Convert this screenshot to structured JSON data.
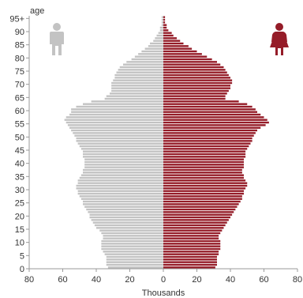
{
  "chart_data": {
    "type": "bar",
    "orientation": "horizontal",
    "layout": "population-pyramid",
    "title": "",
    "ylabel": "age",
    "xlabel": "Thousands",
    "x_ticks": [
      "80",
      "60",
      "40",
      "20",
      "0",
      "20",
      "40",
      "60",
      "80"
    ],
    "xlim": [
      -80,
      80
    ],
    "y_ticks": [
      "0",
      "5",
      "10",
      "15",
      "20",
      "25",
      "30",
      "35",
      "40",
      "45",
      "50",
      "55",
      "60",
      "65",
      "70",
      "75",
      "80",
      "85",
      "90",
      "95+"
    ],
    "ylim": [
      0,
      96
    ],
    "grid": false,
    "colors": {
      "male": "#c3c3c3",
      "female": "#951c28",
      "axis": "#9a9a9a",
      "text": "#333333"
    },
    "icons": {
      "male": "male-person-icon",
      "female": "female-person-icon"
    },
    "ages": [
      0,
      1,
      2,
      3,
      4,
      5,
      6,
      7,
      8,
      9,
      10,
      11,
      12,
      13,
      14,
      15,
      16,
      17,
      18,
      19,
      20,
      21,
      22,
      23,
      24,
      25,
      26,
      27,
      28,
      29,
      30,
      31,
      32,
      33,
      34,
      35,
      36,
      37,
      38,
      39,
      40,
      41,
      42,
      43,
      44,
      45,
      46,
      47,
      48,
      49,
      50,
      51,
      52,
      53,
      54,
      55,
      56,
      57,
      58,
      59,
      60,
      61,
      62,
      63,
      64,
      65,
      66,
      67,
      68,
      69,
      70,
      71,
      72,
      73,
      74,
      75,
      76,
      77,
      78,
      79,
      80,
      81,
      82,
      83,
      84,
      85,
      86,
      87,
      88,
      89,
      90,
      91,
      92,
      93,
      94,
      95
    ],
    "series": [
      {
        "group": "male",
        "values": [
          33,
          34,
          34,
          34,
          34,
          35,
          36,
          37,
          37,
          37,
          37,
          36,
          36,
          37,
          38,
          40,
          41,
          42,
          43,
          44,
          44,
          45,
          46,
          47,
          48,
          48,
          49,
          50,
          51,
          51,
          52,
          52,
          51,
          51,
          50,
          49,
          48,
          48,
          47,
          47,
          47,
          47,
          48,
          48,
          48,
          49,
          50,
          51,
          52,
          52,
          53,
          54,
          55,
          56,
          57,
          58,
          59,
          58,
          56,
          55,
          55,
          52,
          48,
          43,
          35,
          34,
          32,
          31,
          31,
          31,
          31,
          30,
          29,
          29,
          28,
          27,
          26,
          24,
          22,
          19,
          17,
          15,
          13,
          11,
          9,
          8,
          6,
          5,
          4,
          3,
          2,
          2,
          1,
          1,
          1,
          1
        ]
      },
      {
        "group": "female",
        "values": [
          31,
          32,
          32,
          32,
          32,
          33,
          33,
          34,
          34,
          34,
          34,
          33,
          33,
          34,
          35,
          36,
          37,
          38,
          39,
          40,
          41,
          42,
          43,
          44,
          45,
          46,
          47,
          47,
          48,
          48,
          49,
          50,
          50,
          49,
          48,
          48,
          47,
          47,
          48,
          48,
          48,
          48,
          49,
          49,
          49,
          50,
          51,
          52,
          53,
          53,
          54,
          55,
          56,
          58,
          61,
          63,
          62,
          60,
          58,
          56,
          55,
          53,
          50,
          45,
          37,
          37,
          38,
          39,
          40,
          40,
          41,
          41,
          40,
          39,
          38,
          37,
          36,
          34,
          32,
          29,
          26,
          23,
          20,
          17,
          15,
          12,
          10,
          8,
          6,
          5,
          3,
          2,
          2,
          1,
          1,
          1
        ]
      }
    ]
  }
}
